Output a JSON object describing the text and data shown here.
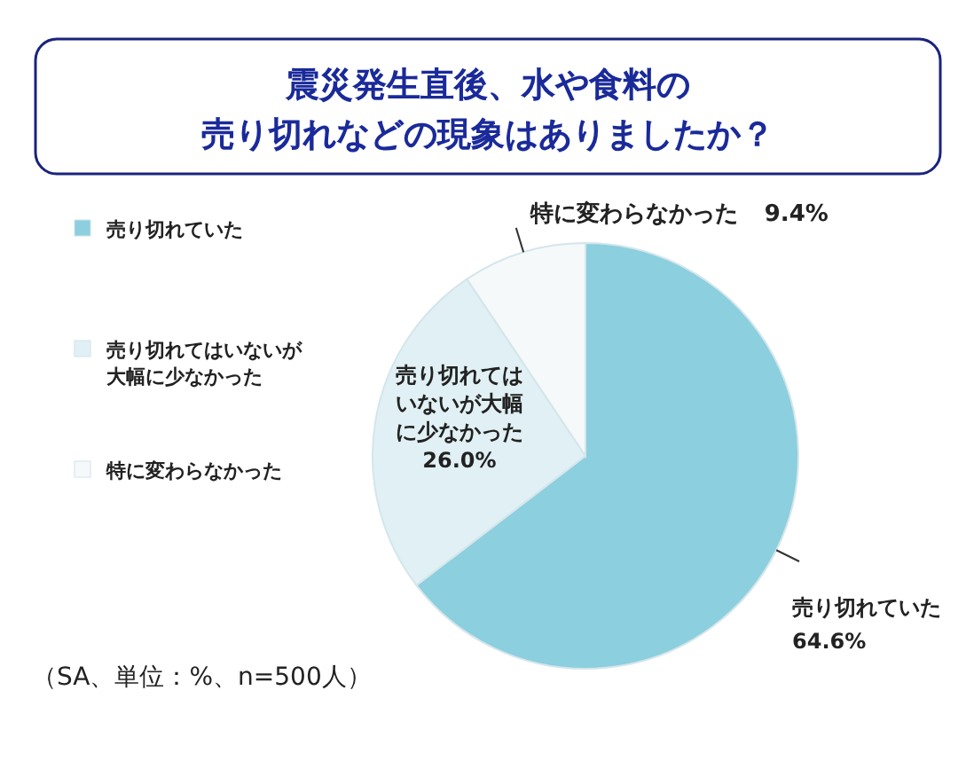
{
  "chart_data": {
    "type": "pie",
    "title": "震災発生直後、水や食料の売り切れなどの現象はありましたか？",
    "categories": [
      "売り切れていた",
      "売り切れてはいないが大幅に少なかった",
      "特に変わらなかった"
    ],
    "values": [
      64.6,
      26.0,
      9.4
    ],
    "colors": [
      "#8ccfde",
      "#e1f0f4",
      "#f5f9fa"
    ],
    "value_labels": [
      "64.6%",
      "26.0%",
      "9.4%"
    ],
    "legend": "left",
    "annotations": [
      "（SA、単位：%、n=500人）"
    ]
  }
}
